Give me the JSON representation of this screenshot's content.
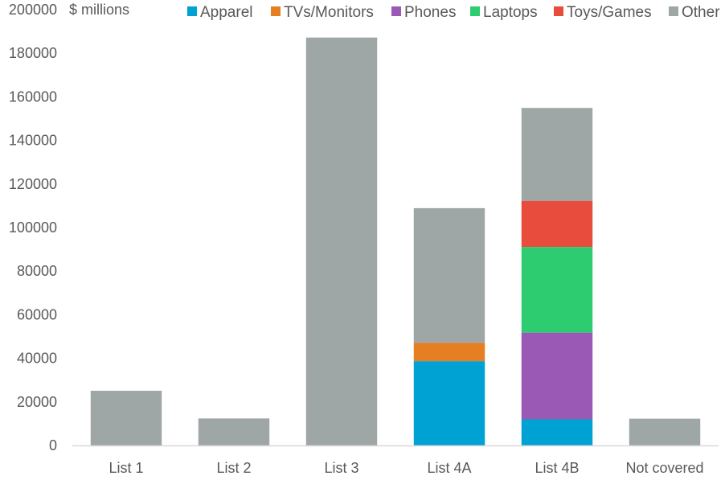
{
  "chart_data": {
    "type": "bar",
    "stacked": true,
    "unit_label": "$ millions",
    "categories": [
      "List 1",
      "List 2",
      "List 3",
      "List 4A",
      "List 4B",
      "Not covered"
    ],
    "ylim": [
      0,
      200000
    ],
    "yticks": [
      0,
      20000,
      40000,
      60000,
      80000,
      100000,
      120000,
      140000,
      160000,
      180000,
      200000
    ],
    "grid": false,
    "legend_position": "top",
    "series": [
      {
        "name": "Apparel",
        "color": "#00A2D3",
        "values": [
          0,
          0,
          0,
          38700,
          12000,
          0
        ]
      },
      {
        "name": "TVs/Monitors",
        "color": "#E67E22",
        "values": [
          0,
          0,
          0,
          8400,
          0,
          0
        ]
      },
      {
        "name": "Phones",
        "color": "#9B59B6",
        "values": [
          0,
          0,
          0,
          0,
          39800,
          0
        ]
      },
      {
        "name": "Laptops",
        "color": "#2ECC71",
        "values": [
          0,
          0,
          0,
          0,
          39300,
          0
        ]
      },
      {
        "name": "Toys/Games",
        "color": "#E74C3C",
        "values": [
          0,
          0,
          0,
          0,
          21200,
          0
        ]
      },
      {
        "name": "Other",
        "color": "#9EA7A6",
        "values": [
          25100,
          12400,
          187200,
          61800,
          42600,
          12300
        ]
      }
    ]
  }
}
